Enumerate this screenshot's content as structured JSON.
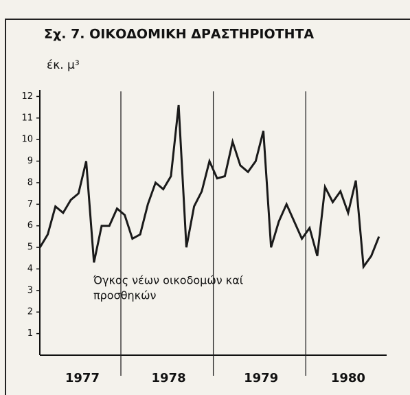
{
  "chart_data": {
    "type": "line",
    "title": "Σχ. 7. ΟΙΚΟΔΟΜΙΚΗ ΔΡΑΣΤΗΡΙΟΤΗΤΑ",
    "y_label": "έκ. μ³",
    "annotation": [
      "Όγκος νέων οικοδομών καί",
      "προσθηκών"
    ],
    "x": [
      0,
      1,
      2,
      3,
      4,
      5,
      6,
      7,
      8,
      9,
      10,
      11,
      12,
      13,
      14,
      15,
      16,
      17,
      18,
      19,
      20,
      21,
      22,
      23,
      24,
      25,
      26,
      27,
      28,
      29,
      30,
      31,
      32,
      33,
      34,
      35,
      36,
      37,
      38,
      39,
      40,
      41,
      42,
      43,
      44
    ],
    "series": [
      {
        "name": "Όγκος νέων οικοδομών καί προσθηκών",
        "color": "#1a1a1a",
        "values": [
          5.0,
          5.6,
          6.9,
          6.6,
          7.2,
          7.5,
          9.0,
          4.3,
          6.0,
          6.0,
          6.8,
          6.5,
          5.4,
          5.6,
          7.0,
          8.0,
          7.7,
          8.3,
          11.6,
          5.0,
          6.9,
          7.6,
          9.0,
          8.2,
          8.3,
          9.9,
          8.8,
          8.5,
          9.0,
          10.4,
          5.0,
          6.2,
          7.0,
          6.2,
          5.4,
          5.9,
          4.6,
          7.8,
          7.1,
          7.6,
          6.6,
          8.1,
          4.1,
          4.6,
          5.5
        ]
      }
    ],
    "xlim": [
      -0.2,
      45
    ],
    "xticks": [
      {
        "value": 5.5,
        "label": "1977"
      },
      {
        "value": 16.7,
        "label": "1978"
      },
      {
        "value": 28.7,
        "label": "1979"
      },
      {
        "value": 40,
        "label": "1980"
      }
    ],
    "year_separators": [
      10.5,
      22.5,
      34.5
    ],
    "ylim": [
      0,
      12.3
    ],
    "yticks": [
      1,
      2,
      3,
      4,
      5,
      6,
      7,
      8,
      9,
      10,
      11,
      12
    ]
  }
}
